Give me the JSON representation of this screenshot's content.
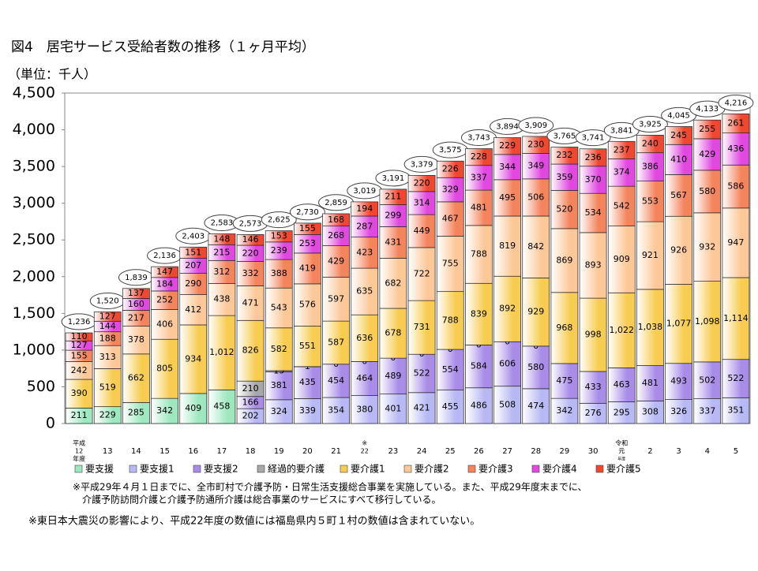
{
  "title": "図4　居宅サービス受給者数の推移（１ヶ月平均）",
  "chart_data": {
    "type": "stacked-bar",
    "unit_label": "（単位：千人）",
    "categories": [
      [
        "平成",
        "12",
        "年度"
      ],
      "13",
      "14",
      "15",
      "16",
      "17",
      "18",
      "19",
      "20",
      "21",
      [
        "※",
        "22"
      ],
      "23",
      "24",
      "25",
      "26",
      "27",
      "28",
      "29",
      "30",
      [
        "令和",
        "元",
        "年度"
      ],
      "2",
      "3",
      "4",
      "5"
    ],
    "ylim": [
      0,
      4500
    ],
    "yticks": [
      0,
      500,
      {
        "value": 1000,
        "label": "1,000"
      },
      {
        "value": 1500,
        "label": "1,500"
      },
      {
        "value": 2000,
        "label": "2,000"
      },
      {
        "value": 2500,
        "label": "2,500"
      },
      {
        "value": 3000,
        "label": "3,000"
      },
      {
        "value": 3500,
        "label": "3,500"
      },
      {
        "value": 4000,
        "label": "4,000"
      },
      {
        "value": 4500,
        "label": "4,500"
      }
    ],
    "series": [
      {
        "name": "要支援",
        "color": "#9ee8c0",
        "values": [
          211,
          229,
          285,
          342,
          409,
          458,
          null,
          null,
          null,
          null,
          null,
          null,
          null,
          null,
          null,
          null,
          null,
          null,
          null,
          null,
          null,
          null,
          null,
          null
        ]
      },
      {
        "name": "要支援1",
        "color": "#b8b8f4",
        "values": [
          null,
          null,
          null,
          null,
          null,
          null,
          202,
          324,
          339,
          354,
          380,
          401,
          421,
          455,
          486,
          508,
          474,
          342,
          276,
          295,
          308,
          326,
          337,
          351
        ]
      },
      {
        "name": "要支援2",
        "color": "#a88ce8",
        "values": [
          null,
          null,
          null,
          null,
          null,
          null,
          166,
          381,
          435,
          454,
          464,
          489,
          522,
          554,
          584,
          606,
          580,
          475,
          433,
          463,
          481,
          493,
          502,
          522
        ]
      },
      {
        "name": "経過的要介護",
        "color": "#a8a8a8",
        "values": [
          null,
          null,
          null,
          null,
          null,
          null,
          210,
          15,
          1,
          0,
          0,
          0,
          0,
          0,
          0,
          0,
          0,
          null,
          null,
          null,
          null,
          null,
          null,
          null
        ]
      },
      {
        "name": "要介護1",
        "color": "#f8cc50",
        "values": [
          390,
          519,
          662,
          805,
          934,
          1012,
          826,
          582,
          551,
          587,
          636,
          678,
          731,
          788,
          839,
          892,
          929,
          968,
          998,
          1022,
          1038,
          1077,
          1098,
          1114
        ],
        "value_labels": [
          "390",
          "519",
          "662",
          "805",
          "934",
          "1,012",
          "826",
          "582",
          "551",
          "587",
          "636",
          "678",
          "731",
          "788",
          "839",
          "892",
          "929",
          "968",
          "998",
          "1,022",
          "1,038",
          "1,077",
          "1,098",
          "1,114"
        ]
      },
      {
        "name": "要介護2",
        "color": "#fcc898",
        "values": [
          242,
          313,
          378,
          406,
          412,
          438,
          471,
          543,
          576,
          597,
          635,
          682,
          722,
          755,
          788,
          819,
          842,
          869,
          893,
          909,
          921,
          926,
          932,
          947
        ]
      },
      {
        "name": "要介護3",
        "color": "#f4845c",
        "values": [
          155,
          188,
          217,
          252,
          290,
          312,
          332,
          388,
          419,
          429,
          423,
          431,
          449,
          467,
          481,
          495,
          506,
          520,
          534,
          542,
          553,
          567,
          580,
          586
        ]
      },
      {
        "name": "要介護4",
        "color": "#e048e0",
        "values": [
          127,
          144,
          160,
          184,
          207,
          215,
          220,
          239,
          253,
          268,
          287,
          299,
          314,
          329,
          337,
          344,
          349,
          359,
          370,
          374,
          386,
          410,
          429,
          436
        ]
      },
      {
        "name": "要介護5",
        "color": "#f04830",
        "values": [
          110,
          127,
          137,
          147,
          151,
          148,
          146,
          153,
          155,
          168,
          194,
          211,
          220,
          226,
          228,
          229,
          230,
          232,
          236,
          237,
          240,
          245,
          255,
          261
        ]
      }
    ],
    "totals": {
      "values": [
        1236,
        1520,
        1839,
        2136,
        2403,
        2583,
        2573,
        2625,
        2730,
        2859,
        3019,
        3191,
        3379,
        3575,
        3743,
        3894,
        3909,
        3765,
        3741,
        3841,
        3925,
        4045,
        4133,
        4216
      ],
      "value_labels": [
        "1,236",
        "1,520",
        "1,839",
        "2,136",
        "2,403",
        "2,583",
        "2,573",
        "2,625",
        "2,730",
        "2,859",
        "3,019",
        "3,191",
        "3,379",
        "3,575",
        "3,743",
        "3,894",
        "3,909",
        "3,765",
        "3,741",
        "3,841",
        "3,925",
        "4,045",
        "4,133",
        "4,216"
      ]
    }
  },
  "notes": [
    "※平成29年４月１日までに、全市町村で介護予防・日常生活支援総合事業を実施している。また、平成29年度末までに、",
    "介護予防訪問介護と介護予防通所介護は総合事業のサービスにすべて移行している。"
  ],
  "footnote": "※東日本大震災の影響により、平成22年度の数値には福島県内５町１村の数値は含まれていない。"
}
